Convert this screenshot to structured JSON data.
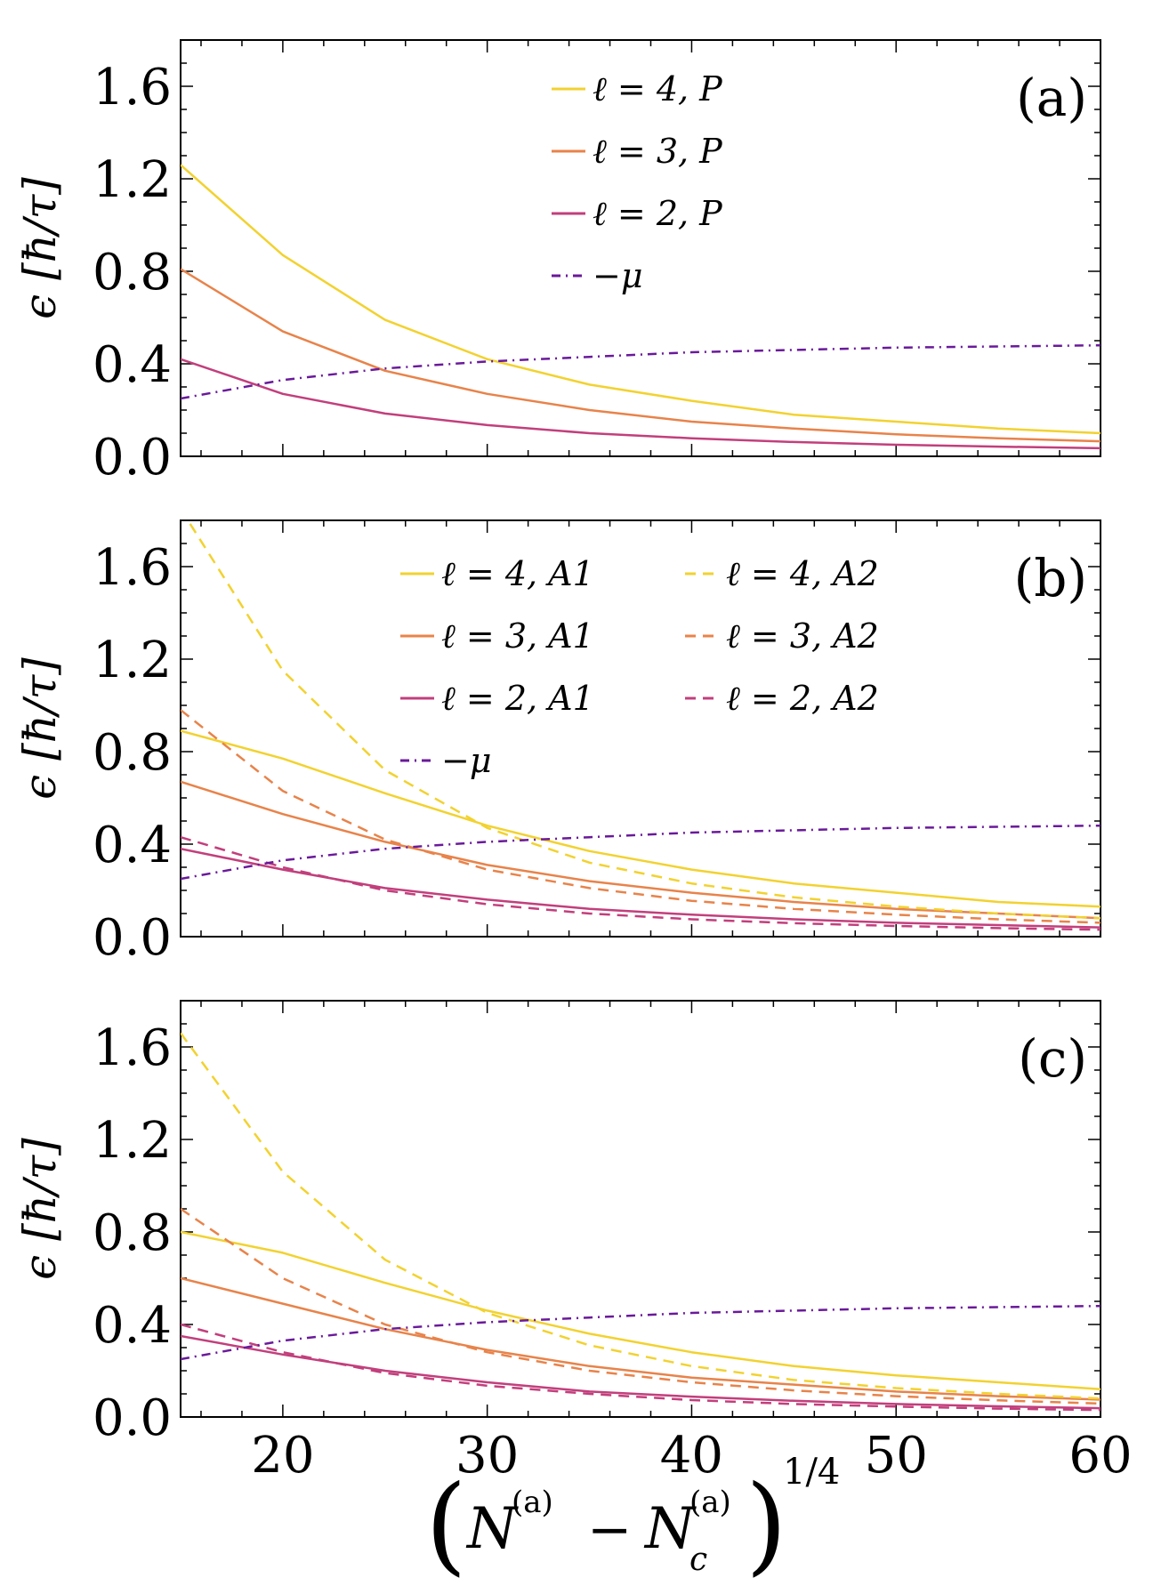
{
  "figure": {
    "xlabel": "(N(a) − N_c(a))^(1/4)",
    "xlabel_main": "N",
    "xlabel_sup1": "(a)",
    "xlabel_minus": "−",
    "xlabel_sub": "c",
    "xlabel_sup2": "(a)",
    "xlabel_power": "1/4",
    "ylabel": "ϵ [ħ/τ]",
    "x_tick_labels": [
      "20",
      "30",
      "40",
      "50",
      "60"
    ]
  },
  "colors": {
    "l4": "#f2d230",
    "l3": "#e8834a",
    "l2": "#c23f7c",
    "mu": "#6a1a9a"
  },
  "chart_data": [
    {
      "type": "line",
      "panel_label": "(a)",
      "xlim": [
        15,
        60
      ],
      "ylim": [
        0,
        1.8
      ],
      "y_ticks": [
        "0.0",
        "0.4",
        "0.8",
        "1.2",
        "1.6"
      ],
      "x": [
        15,
        20,
        25,
        30,
        35,
        40,
        45,
        50,
        55,
        60
      ],
      "series": [
        {
          "name": "ℓ = 4, P",
          "color_key": "l4",
          "style": "solid",
          "values": [
            1.26,
            0.87,
            0.59,
            0.42,
            0.31,
            0.24,
            0.18,
            0.15,
            0.12,
            0.1
          ]
        },
        {
          "name": "ℓ = 3, P",
          "color_key": "l3",
          "style": "solid",
          "values": [
            0.81,
            0.54,
            0.37,
            0.27,
            0.2,
            0.15,
            0.12,
            0.095,
            0.078,
            0.065
          ]
        },
        {
          "name": "ℓ = 2, P",
          "color_key": "l2",
          "style": "solid",
          "values": [
            0.42,
            0.27,
            0.185,
            0.135,
            0.1,
            0.078,
            0.062,
            0.05,
            0.042,
            0.035
          ]
        },
        {
          "name": "−μ",
          "color_key": "mu",
          "style": "dashdot",
          "values": [
            0.25,
            0.33,
            0.38,
            0.41,
            0.43,
            0.45,
            0.46,
            0.47,
            0.475,
            0.48
          ]
        }
      ]
    },
    {
      "type": "line",
      "panel_label": "(b)",
      "xlim": [
        15,
        60
      ],
      "ylim": [
        0,
        1.8
      ],
      "y_ticks": [
        "0.0",
        "0.4",
        "0.8",
        "1.2",
        "1.6"
      ],
      "x": [
        15,
        20,
        25,
        30,
        35,
        40,
        45,
        50,
        55,
        60
      ],
      "series": [
        {
          "name": "ℓ = 4, A1",
          "color_key": "l4",
          "style": "solid",
          "values": [
            0.89,
            0.77,
            0.62,
            0.48,
            0.37,
            0.29,
            0.23,
            0.19,
            0.15,
            0.13
          ]
        },
        {
          "name": "ℓ = 3, A1",
          "color_key": "l3",
          "style": "solid",
          "values": [
            0.67,
            0.53,
            0.41,
            0.31,
            0.24,
            0.19,
            0.15,
            0.12,
            0.1,
            0.08
          ]
        },
        {
          "name": "ℓ = 2, A1",
          "color_key": "l2",
          "style": "solid",
          "values": [
            0.38,
            0.29,
            0.21,
            0.16,
            0.12,
            0.095,
            0.075,
            0.06,
            0.05,
            0.04
          ]
        },
        {
          "name": "ℓ = 4, A2",
          "color_key": "l4",
          "style": "dashed",
          "values": [
            1.85,
            1.15,
            0.72,
            0.47,
            0.32,
            0.23,
            0.17,
            0.13,
            0.1,
            0.08
          ]
        },
        {
          "name": "ℓ = 3, A2",
          "color_key": "l3",
          "style": "dashed",
          "values": [
            0.98,
            0.63,
            0.42,
            0.29,
            0.21,
            0.155,
            0.12,
            0.095,
            0.075,
            0.06
          ]
        },
        {
          "name": "ℓ = 2, A2",
          "color_key": "l2",
          "style": "dashed",
          "values": [
            0.43,
            0.3,
            0.2,
            0.14,
            0.1,
            0.075,
            0.058,
            0.046,
            0.037,
            0.03
          ]
        },
        {
          "name": "−μ",
          "color_key": "mu",
          "style": "dashdot",
          "values": [
            0.25,
            0.33,
            0.38,
            0.41,
            0.43,
            0.45,
            0.46,
            0.47,
            0.475,
            0.48
          ]
        }
      ]
    },
    {
      "type": "line",
      "panel_label": "(c)",
      "xlim": [
        15,
        60
      ],
      "ylim": [
        0,
        1.8
      ],
      "y_ticks": [
        "0.0",
        "0.4",
        "0.8",
        "1.2",
        "1.6"
      ],
      "x": [
        15,
        20,
        25,
        30,
        35,
        40,
        45,
        50,
        55,
        60
      ],
      "series": [
        {
          "name": "ℓ = 4, A1",
          "color_key": "l4",
          "style": "solid",
          "values": [
            0.8,
            0.71,
            0.58,
            0.46,
            0.36,
            0.28,
            0.22,
            0.18,
            0.15,
            0.12
          ]
        },
        {
          "name": "ℓ = 3, A1",
          "color_key": "l3",
          "style": "solid",
          "values": [
            0.6,
            0.49,
            0.38,
            0.29,
            0.22,
            0.17,
            0.14,
            0.11,
            0.09,
            0.075
          ]
        },
        {
          "name": "ℓ = 2, A1",
          "color_key": "l2",
          "style": "solid",
          "values": [
            0.35,
            0.27,
            0.2,
            0.15,
            0.11,
            0.088,
            0.07,
            0.056,
            0.046,
            0.038
          ]
        },
        {
          "name": "ℓ = 4, A2",
          "color_key": "l4",
          "style": "dashed",
          "values": [
            1.66,
            1.06,
            0.68,
            0.45,
            0.31,
            0.22,
            0.16,
            0.125,
            0.1,
            0.08
          ]
        },
        {
          "name": "ℓ = 3, A2",
          "color_key": "l3",
          "style": "dashed",
          "values": [
            0.9,
            0.6,
            0.4,
            0.28,
            0.2,
            0.15,
            0.115,
            0.09,
            0.072,
            0.058
          ]
        },
        {
          "name": "ℓ = 2, A2",
          "color_key": "l2",
          "style": "dashed",
          "values": [
            0.4,
            0.28,
            0.19,
            0.135,
            0.1,
            0.073,
            0.056,
            0.045,
            0.036,
            0.03
          ]
        },
        {
          "name": "−μ",
          "color_key": "mu",
          "style": "dashdot",
          "values": [
            0.25,
            0.33,
            0.38,
            0.41,
            0.43,
            0.45,
            0.46,
            0.47,
            0.475,
            0.48
          ]
        }
      ]
    }
  ]
}
